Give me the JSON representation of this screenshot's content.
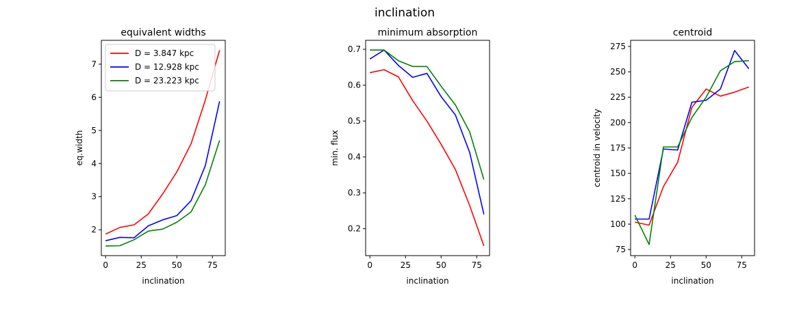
{
  "figure": {
    "suptitle": "inclination"
  },
  "chart_data": [
    {
      "type": "line",
      "title": "equivalent widths",
      "xlabel": "inclination",
      "ylabel": "eq.width",
      "xlim": [
        -3,
        84
      ],
      "ylim": [
        1.22,
        7.72
      ],
      "xticks": [
        0,
        25,
        50,
        75
      ],
      "yticks": [
        2,
        3,
        4,
        5,
        6,
        7
      ],
      "x": [
        0,
        10,
        20,
        30,
        40,
        50,
        60,
        70,
        80
      ],
      "legend": "upper-left",
      "series": [
        {
          "name": "D = 3.847 kpc",
          "color": "#ff0000",
          "values": [
            1.87,
            2.07,
            2.15,
            2.48,
            3.08,
            3.75,
            4.6,
            5.92,
            7.42
          ]
        },
        {
          "name": "D = 12.928 kpc",
          "color": "#0000ff",
          "values": [
            1.67,
            1.77,
            1.76,
            2.12,
            2.3,
            2.43,
            2.88,
            3.94,
            5.88
          ]
        },
        {
          "name": "D = 23.223 kpc",
          "color": "#008000",
          "values": [
            1.51,
            1.52,
            1.7,
            1.96,
            2.02,
            2.23,
            2.54,
            3.36,
            4.7
          ]
        }
      ]
    },
    {
      "type": "line",
      "title": "minimum absorption",
      "xlabel": "inclination",
      "ylabel": "min. flux",
      "xlim": [
        -3,
        84
      ],
      "ylim": [
        0.125,
        0.725
      ],
      "xticks": [
        0,
        25,
        50,
        75
      ],
      "yticks": [
        0.2,
        0.3,
        0.4,
        0.5,
        0.6,
        0.7
      ],
      "ytick_labels": [
        "0.2",
        "0.3",
        "0.4",
        "0.5",
        "0.6",
        "0.7"
      ],
      "x": [
        0,
        10,
        20,
        30,
        40,
        50,
        60,
        70,
        80
      ],
      "series": [
        {
          "color": "#ff0000",
          "values": [
            0.635,
            0.643,
            0.623,
            0.557,
            0.5,
            0.435,
            0.365,
            0.265,
            0.152
          ]
        },
        {
          "color": "#0000ff",
          "values": [
            0.673,
            0.698,
            0.655,
            0.622,
            0.633,
            0.568,
            0.517,
            0.413,
            0.24
          ]
        },
        {
          "color": "#008000",
          "values": [
            0.698,
            0.698,
            0.668,
            0.652,
            0.652,
            0.597,
            0.545,
            0.47,
            0.337
          ]
        }
      ]
    },
    {
      "type": "line",
      "title": "centroid",
      "xlabel": "inclination",
      "ylabel": "centroid in velocity",
      "xlim": [
        -3,
        84
      ],
      "ylim": [
        69,
        281
      ],
      "xticks": [
        0,
        25,
        50,
        75
      ],
      "yticks": [
        75,
        100,
        125,
        150,
        175,
        200,
        225,
        250,
        275
      ],
      "x": [
        0,
        10,
        20,
        30,
        40,
        50,
        60,
        70,
        80
      ],
      "series": [
        {
          "color": "#ff0000",
          "values": [
            102,
            99,
            137,
            161,
            215,
            233,
            226,
            230,
            235
          ]
        },
        {
          "color": "#0000ff",
          "values": [
            105,
            105,
            174,
            173,
            220,
            222,
            233,
            271,
            253
          ]
        },
        {
          "color": "#008000",
          "values": [
            109,
            80,
            176,
            176,
            205,
            225,
            251,
            260,
            261
          ]
        }
      ]
    }
  ]
}
